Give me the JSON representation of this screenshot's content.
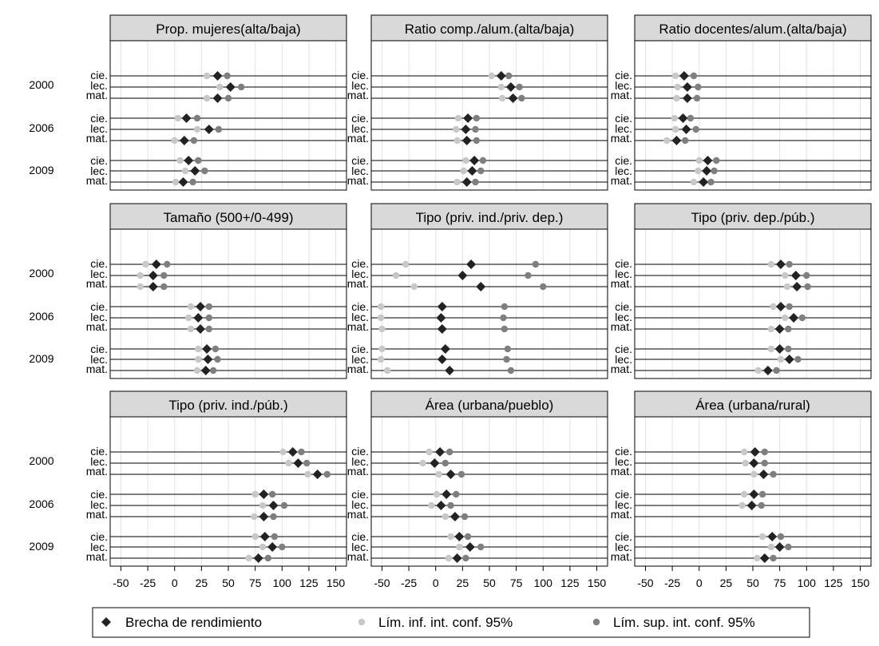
{
  "chart_data": {
    "type": "scatter",
    "layout": "3x3 dot-plot panels",
    "x_range": [
      -60,
      160
    ],
    "x_ticks": [
      -50,
      -25,
      0,
      25,
      50,
      75,
      100,
      125,
      150
    ],
    "x_tick_labels": [
      "-50",
      "-25",
      "0",
      "25",
      "50",
      "75",
      "100",
      "125",
      "150"
    ],
    "years": [
      "2000",
      "2006",
      "2009"
    ],
    "subjects": [
      "cie.",
      "lec.",
      "mat."
    ],
    "colors": {
      "gap": "#222222",
      "lower": "#c8c8c8",
      "upper": "#7f7f7f",
      "strip": "#d9d9d9"
    },
    "legend": {
      "gap": "Brecha de rendimiento",
      "lower": "Lím. inf. int. conf. 95%",
      "upper": "Lím. sup. int. conf. 95%"
    },
    "panels": [
      {
        "title": "Prop. mujeres(alta/baja)",
        "rows": [
          [
            40,
            30,
            49
          ],
          [
            52,
            42,
            62
          ],
          [
            40,
            30,
            50
          ],
          [
            11,
            3,
            21
          ],
          [
            32,
            21,
            41
          ],
          [
            9,
            0,
            18
          ],
          [
            13,
            5,
            22
          ],
          [
            19,
            10,
            28
          ],
          [
            8,
            1,
            17
          ]
        ]
      },
      {
        "title": "Ratio comp./alum.(alta/baja)",
        "rows": [
          [
            61,
            52,
            68
          ],
          [
            70,
            61,
            78
          ],
          [
            72,
            62,
            80
          ],
          [
            30,
            21,
            38
          ],
          [
            28,
            19,
            37
          ],
          [
            29,
            20,
            38
          ],
          [
            36,
            28,
            44
          ],
          [
            34,
            26,
            42
          ],
          [
            29,
            20,
            37
          ]
        ]
      },
      {
        "title": "Ratio docentes/alum.(alta/baja)",
        "rows": [
          [
            -14,
            -22,
            -5
          ],
          [
            -11,
            -20,
            -1
          ],
          [
            -11,
            -21,
            -2
          ],
          [
            -15,
            -23,
            -8
          ],
          [
            -12,
            -22,
            -3
          ],
          [
            -21,
            -30,
            -13
          ],
          [
            8,
            0,
            16
          ],
          [
            7,
            -1,
            14
          ],
          [
            4,
            -5,
            11
          ]
        ]
      },
      {
        "title": "Tamaño (500+/0-499)",
        "rows": [
          [
            -17,
            -27,
            -7
          ],
          [
            -20,
            -32,
            -10
          ],
          [
            -20,
            -32,
            -10
          ],
          [
            24,
            15,
            32
          ],
          [
            22,
            13,
            32
          ],
          [
            24,
            15,
            32
          ],
          [
            30,
            22,
            38
          ],
          [
            31,
            22,
            40
          ],
          [
            29,
            21,
            36
          ]
        ]
      },
      {
        "title": "Tipo (priv. ind./priv. dep.)",
        "rows": [
          [
            33,
            -28,
            93
          ],
          [
            25,
            -37,
            86
          ],
          [
            42,
            -20,
            100
          ],
          [
            6,
            -51,
            64
          ],
          [
            5,
            -51,
            63
          ],
          [
            6,
            -50,
            64
          ],
          [
            9,
            -50,
            67
          ],
          [
            6,
            -51,
            66
          ],
          [
            13,
            -45,
            70
          ]
        ]
      },
      {
        "title": "Tipo (priv. dep./púb.)",
        "rows": [
          [
            76,
            67,
            84
          ],
          [
            90,
            80,
            100
          ],
          [
            91,
            82,
            101
          ],
          [
            76,
            69,
            84
          ],
          [
            88,
            80,
            96
          ],
          [
            75,
            67,
            83
          ],
          [
            75,
            67,
            83
          ],
          [
            84,
            76,
            92
          ],
          [
            64,
            55,
            72
          ]
        ]
      },
      {
        "title": "Tipo (priv. ind./púb.)",
        "rows": [
          [
            110,
            101,
            118
          ],
          [
            115,
            106,
            123
          ],
          [
            133,
            124,
            142
          ],
          [
            83,
            75,
            91
          ],
          [
            92,
            82,
            102
          ],
          [
            83,
            74,
            92
          ],
          [
            84,
            75,
            93
          ],
          [
            91,
            82,
            100
          ],
          [
            78,
            69,
            87
          ]
        ]
      },
      {
        "title": "Área (urbana/pueblo)",
        "rows": [
          [
            4,
            -6,
            13
          ],
          [
            -1,
            -12,
            9
          ],
          [
            14,
            3,
            24
          ],
          [
            10,
            1,
            19
          ],
          [
            5,
            -4,
            14
          ],
          [
            18,
            9,
            27
          ],
          [
            22,
            14,
            30
          ],
          [
            32,
            22,
            42
          ],
          [
            20,
            12,
            28
          ]
        ]
      },
      {
        "title": "Área (urbana/rural)",
        "rows": [
          [
            52,
            42,
            61
          ],
          [
            51,
            43,
            61
          ],
          [
            60,
            51,
            69
          ],
          [
            51,
            42,
            59
          ],
          [
            49,
            40,
            58
          ],
          [],
          [
            68,
            59,
            76
          ],
          [
            75,
            67,
            83
          ],
          [
            61,
            54,
            69
          ]
        ]
      }
    ]
  }
}
